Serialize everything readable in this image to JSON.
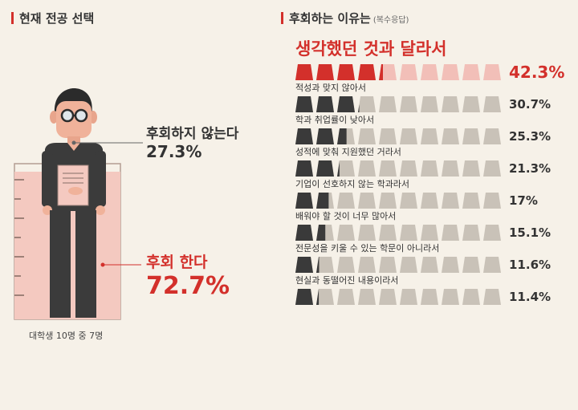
{
  "left": {
    "title": "현재 전공 선택",
    "no_regret": {
      "label": "후회하지 않는다",
      "value": "27.3%"
    },
    "regret": {
      "label": "후회 한다",
      "value": "72.7%"
    },
    "caption": "대학생 10명 중 7명"
  },
  "right": {
    "title": "후회하는 이유는",
    "subtitle": "(복수응답)"
  },
  "chart_data": [
    {
      "type": "pictogram",
      "title": "현재 전공 선택",
      "categories": [
        "후회하지 않는다",
        "후회 한다"
      ],
      "values": [
        27.3,
        72.7
      ],
      "unit": "%"
    },
    {
      "type": "bar",
      "title": "후회하는 이유는",
      "subtitle": "(복수응답)",
      "categories": [
        "생각했던 것과 달라서",
        "적성과 맞지 않아서",
        "학과 취업률이 낮아서",
        "성적에 맞춰 지원했던 거라서",
        "기업이 선호하지 않는 학과라서",
        "배워야 할 것이 너무 많아서",
        "전문성을 키울 수 있는 학문이 아니라서",
        "현실과 동떨어진 내용이라서"
      ],
      "values": [
        42.3,
        30.7,
        25.3,
        21.3,
        17,
        15.1,
        11.6,
        11.4
      ],
      "value_labels": [
        "42.3%",
        "30.7%",
        "25.3%",
        "21.3%",
        "17%",
        "15.1%",
        "11.6%",
        "11.4%"
      ],
      "ylim": [
        0,
        100
      ],
      "colors": {
        "highlight": "#d3302b",
        "highlight_empty": "#f2bfb8",
        "filled": "#3a3a3a",
        "empty": "#c9c2b8"
      }
    }
  ],
  "colors": {
    "accent": "#d3302b",
    "background": "#f6f1e8",
    "pink_fill": "#f4c9c0"
  }
}
